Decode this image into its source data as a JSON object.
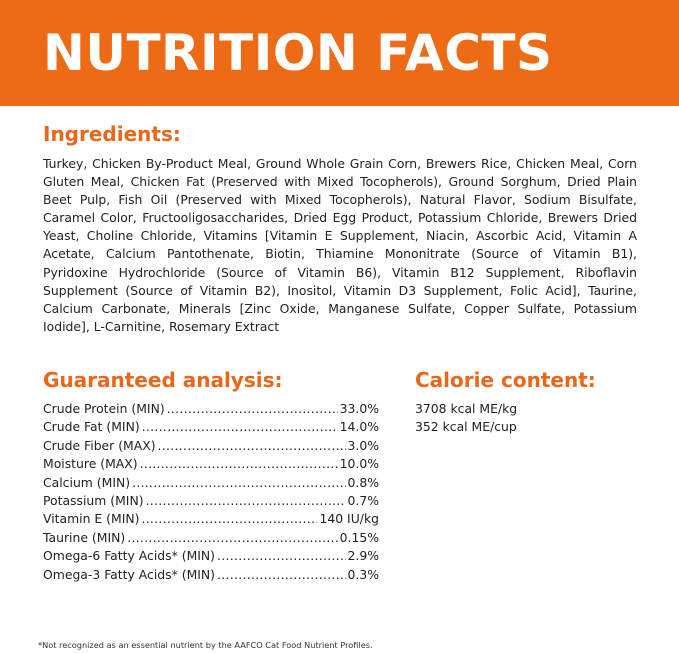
{
  "banner": {
    "title": "NUTRITION FACTS",
    "background_color": "#ee6b15"
  },
  "ingredients": {
    "heading": "Ingredients:",
    "text": "Turkey, Chicken By-Product Meal, Ground Whole Grain Corn, Brewers Rice, Chicken Meal, Corn Gluten Meal, Chicken Fat (Preserved with Mixed Tocopherols), Ground Sorghum, Dried Plain Beet Pulp, Fish Oil (Preserved with Mixed Tocopherols), Natural Flavor, Sodium Bisulfate, Caramel Color, Fructooligosaccharides, Dried Egg Product, Potassium Chloride, Brewers Dried Yeast, Choline Chloride, Vitamins [Vitamin E Supplement, Niacin, Ascorbic Acid, Vitamin A Acetate, Calcium Pantothenate, Biotin, Thiamine Mononitrate (Source of Vitamin B1), Pyridoxine Hydrochloride (Source of Vitamin B6), Vitamin B12 Supplement, Riboflavin Supplement (Source of Vitamin B2), Inositol, Vitamin D3 Supplement, Folic Acid], Taurine, Calcium Carbonate, Minerals [Zinc Oxide, Manganese Sulfate, Copper Sulfate, Potassium Iodide], L-Carnitine, Rosemary Extract"
  },
  "guaranteed_analysis": {
    "heading": "Guaranteed analysis:",
    "rows": [
      {
        "label": "Crude Protein (MIN)",
        "value": "33.0%"
      },
      {
        "label": "Crude Fat (MIN)",
        "value": "14.0%"
      },
      {
        "label": "Crude Fiber (MAX)",
        "value": "3.0%"
      },
      {
        "label": "Moisture (MAX)",
        "value": "10.0%"
      },
      {
        "label": "Calcium (MIN)",
        "value": "0.8%"
      },
      {
        "label": "Potassium (MIN)",
        "value": "0.7%"
      },
      {
        "label": "Vitamin E (MIN)",
        "value": "140 IU/kg"
      },
      {
        "label": "Taurine (MIN)",
        "value": "0.15%"
      },
      {
        "label": "Omega-6 Fatty Acids* (MIN)",
        "value": "2.9%"
      },
      {
        "label": "Omega-3 Fatty Acids* (MIN)",
        "value": "0.3%"
      }
    ]
  },
  "calorie_content": {
    "heading": "Calorie content:",
    "lines": [
      "3708 kcal ME/kg",
      "352 kcal ME/cup"
    ]
  },
  "footnote": "*Not recognized as an essential nutrient by the AAFCO Cat Food Nutrient Profiles.",
  "accent_color": "#e8671a"
}
